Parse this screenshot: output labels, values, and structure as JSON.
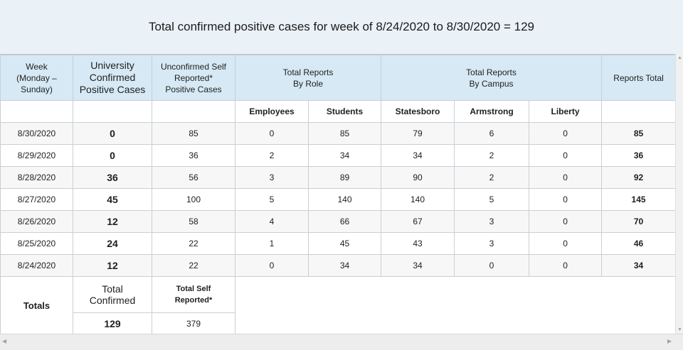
{
  "title": "Total confirmed positive cases for week of 8/24/2020 to 8/30/2020 = 129",
  "headers": {
    "week": [
      "Week",
      "(Monday –",
      "Sunday)"
    ],
    "university": [
      "University",
      "Confirmed",
      "Positive Cases"
    ],
    "unconfirmed": [
      "Unconfirmed Self",
      "Reported*",
      "Positive Cases"
    ],
    "by_role": [
      "Total Reports",
      "By Role"
    ],
    "by_campus": [
      "Total Reports",
      "By Campus"
    ],
    "reports_total": "Reports Total"
  },
  "subheaders": {
    "employees": "Employees",
    "students": "Students",
    "statesboro": "Statesboro",
    "armstrong": "Armstrong",
    "liberty": "Liberty"
  },
  "rows": [
    {
      "date": "8/30/2020",
      "confirmed": "0",
      "self_reported": "85",
      "employees": "0",
      "students": "85",
      "statesboro": "79",
      "armstrong": "6",
      "liberty": "0",
      "total": "85"
    },
    {
      "date": "8/29/2020",
      "confirmed": "0",
      "self_reported": "36",
      "employees": "2",
      "students": "34",
      "statesboro": "34",
      "armstrong": "2",
      "liberty": "0",
      "total": "36"
    },
    {
      "date": "8/28/2020",
      "confirmed": "36",
      "self_reported": "56",
      "employees": "3",
      "students": "89",
      "statesboro": "90",
      "armstrong": "2",
      "liberty": "0",
      "total": "92"
    },
    {
      "date": "8/27/2020",
      "confirmed": "45",
      "self_reported": "100",
      "employees": "5",
      "students": "140",
      "statesboro": "140",
      "armstrong": "5",
      "liberty": "0",
      "total": "145"
    },
    {
      "date": "8/26/2020",
      "confirmed": "12",
      "self_reported": "58",
      "employees": "4",
      "students": "66",
      "statesboro": "67",
      "armstrong": "3",
      "liberty": "0",
      "total": "70"
    },
    {
      "date": "8/25/2020",
      "confirmed": "24",
      "self_reported": "22",
      "employees": "1",
      "students": "45",
      "statesboro": "43",
      "armstrong": "3",
      "liberty": "0",
      "total": "46"
    },
    {
      "date": "8/24/2020",
      "confirmed": "12",
      "self_reported": "22",
      "employees": "0",
      "students": "34",
      "statesboro": "34",
      "armstrong": "0",
      "liberty": "0",
      "total": "34"
    }
  ],
  "totals": {
    "label": "Totals",
    "confirmed_label": [
      "Total",
      "Confirmed"
    ],
    "self_label": [
      "Total Self",
      "Reported*"
    ],
    "confirmed_value": "129",
    "self_value": "379"
  },
  "scrollbar_icons": {
    "up": "triangle-up",
    "down": "triangle-down",
    "left": "triangle-left",
    "right": "triangle-right"
  }
}
